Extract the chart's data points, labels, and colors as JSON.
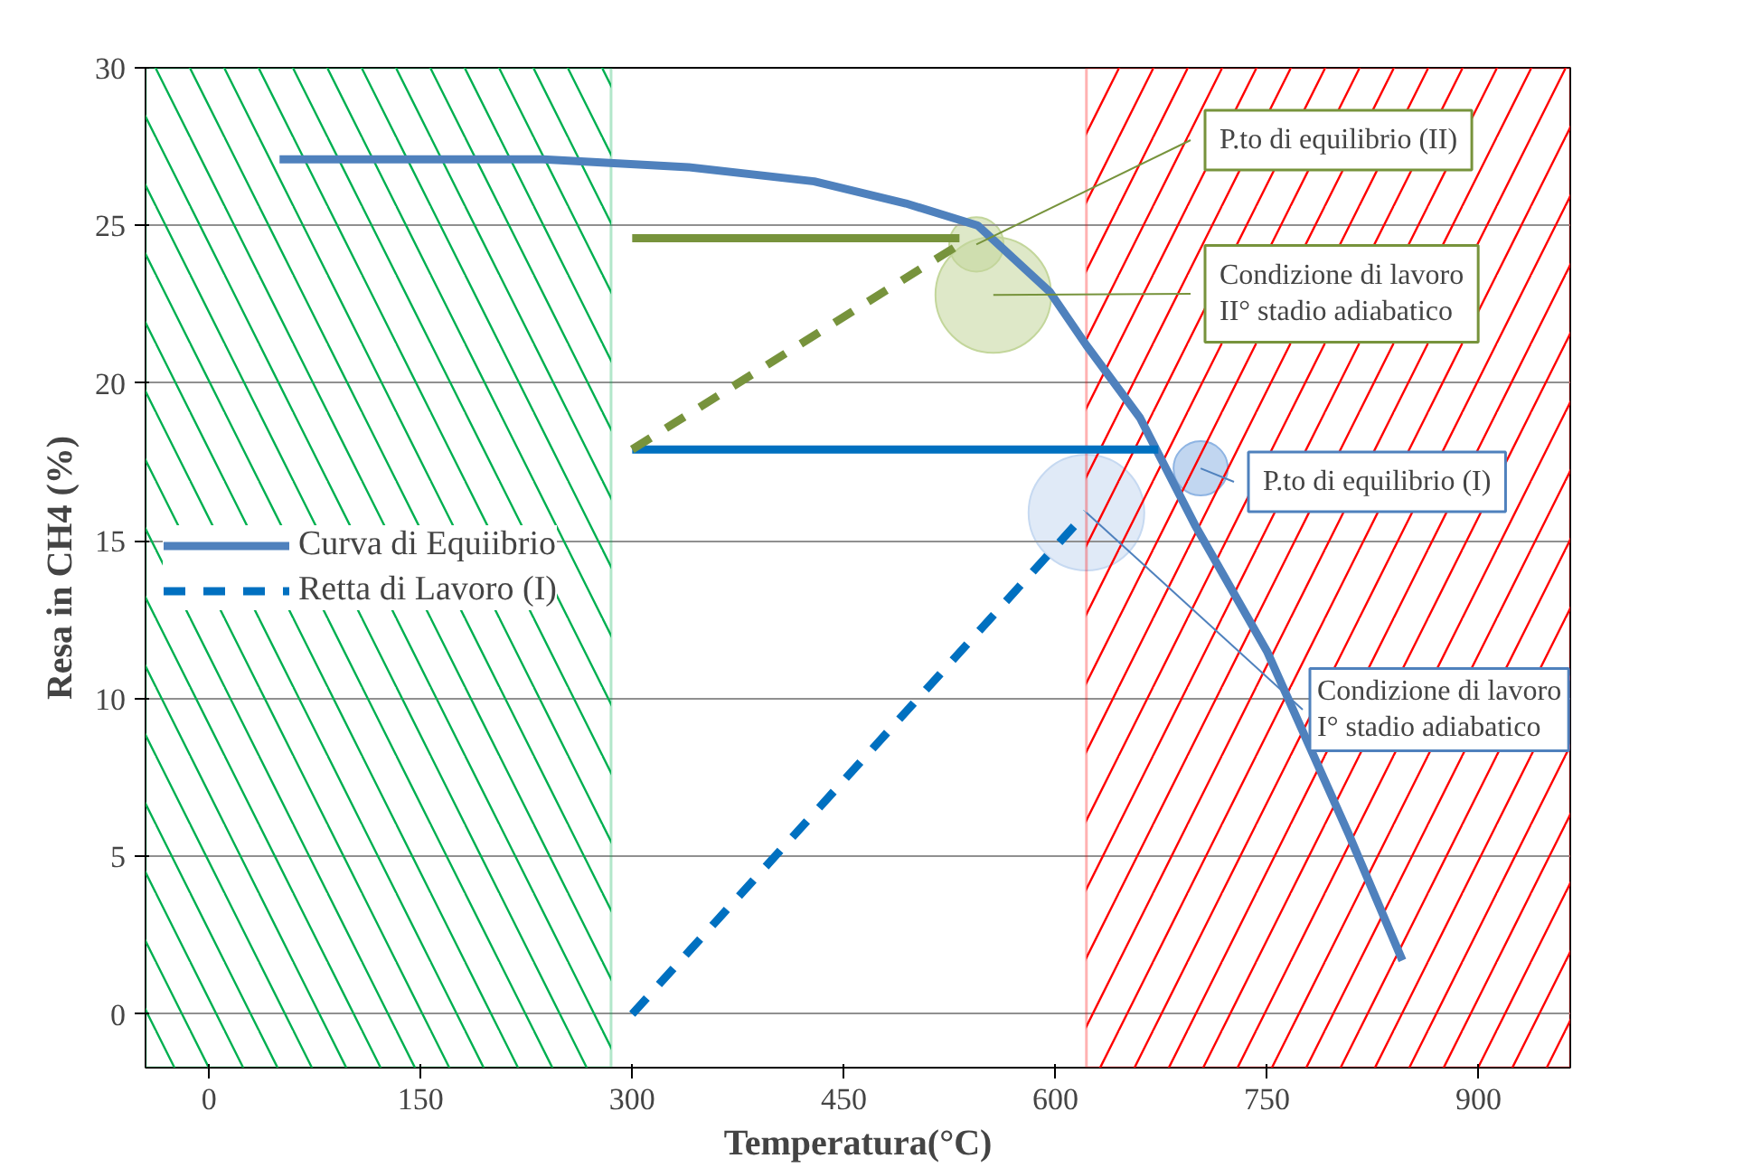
{
  "chart_data": {
    "type": "line",
    "xlabel": "Temperatura(°C)",
    "ylabel": "Resa in CH4 (%)",
    "xlim": [
      -45,
      965
    ],
    "ylim": [
      -1.7,
      30
    ],
    "xticks": [
      0,
      150,
      300,
      450,
      600,
      750,
      900
    ],
    "yticks": [
      0,
      5,
      10,
      15,
      20,
      25,
      30
    ],
    "grid": "y",
    "legend": "left",
    "series": [
      {
        "name": "Curva di Equiibrio",
        "color": "#4f81bd",
        "line_style": "solid",
        "x": [
          50,
          237,
          340,
          429,
          494,
          545,
          596,
          622,
          660,
          699,
          750,
          808,
          846
        ],
        "values": [
          27.1,
          27.1,
          26.85,
          26.4,
          25.7,
          25,
          22.9,
          21.2,
          18.9,
          15.5,
          11.5,
          5.7,
          1.7
        ]
      },
      {
        "name": "Retta di Lavoro (I)",
        "color": "#0070c0",
        "line_style": "dashed",
        "x": [
          300,
          622
        ],
        "values": [
          0,
          15.9
        ]
      },
      {
        "color": "#0070c0",
        "line_style": "solid",
        "x": [
          300,
          673
        ],
        "values": [
          17.9,
          17.9
        ]
      },
      {
        "color": "#77933c",
        "line_style": "dashed",
        "x": [
          300,
          532
        ],
        "values": [
          17.9,
          24.4
        ]
      },
      {
        "color": "#77933c",
        "line_style": "solid",
        "x": [
          300,
          532
        ],
        "values": [
          24.6,
          24.6
        ]
      },
      {
        "type": "bubble",
        "color": "#c3d69b",
        "x": [
          544
        ],
        "values": [
          24.4
        ],
        "sizes": [
          0.22
        ]
      },
      {
        "type": "bubble",
        "color": "#c3d69b",
        "x": [
          556
        ],
        "values": [
          22.8
        ],
        "sizes": [
          1
        ]
      },
      {
        "type": "bubble",
        "color": "#8eb4e3",
        "x": [
          703
        ],
        "values": [
          17.3
        ],
        "sizes": [
          0.22
        ]
      },
      {
        "type": "bubble",
        "color": "#c6d9f1",
        "x": [
          622
        ],
        "values": [
          15.9
        ],
        "sizes": [
          1
        ]
      }
    ],
    "bands": [
      {
        "axis": "x",
        "from": -45,
        "to": 285,
        "color": "#00b050"
      },
      {
        "axis": "x",
        "from": 622,
        "to": 965,
        "color": "#ff0000"
      }
    ],
    "annotations": [
      {
        "text": "P.to di equilibrio (II)",
        "x": 544,
        "y": 24.4
      },
      {
        "text": "Condizione di lavoro\nII° stadio adiabatico",
        "x": 556,
        "y": 22.8
      },
      {
        "text": "P.to di equilibrio (I)",
        "x": 703,
        "y": 17.3
      },
      {
        "text": "Condizione di lavoro\nI° stadio adiabatico",
        "x": 622,
        "y": 15.9
      }
    ]
  }
}
